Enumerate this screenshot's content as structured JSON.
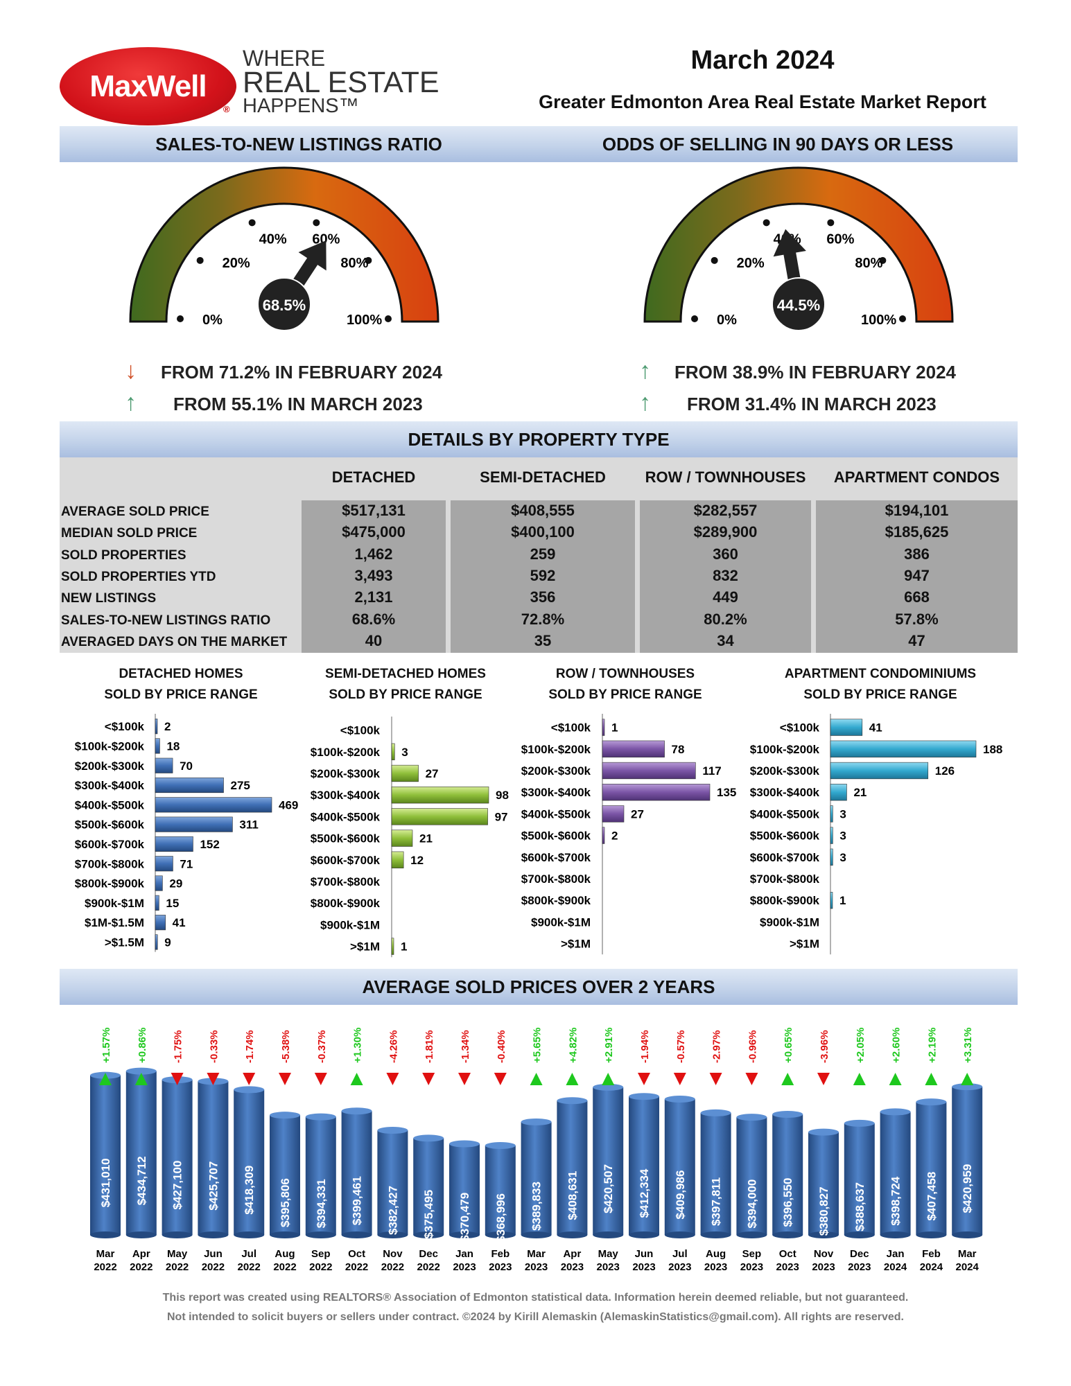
{
  "header": {
    "logo_text": "MaxWell",
    "tagline_1": "WHERE",
    "tagline_2": "REAL ESTATE",
    "tagline_3": "HAPPENS™",
    "report_month": "March 2024",
    "report_title": "Greater Edmonton Area Real Estate Market Report"
  },
  "gauge_sales_ratio": {
    "title": "SALES-TO-NEW LISTINGS RATIO",
    "value": 68.5,
    "value_label": "68.5%",
    "tick_labels": [
      "0%",
      "20%",
      "40%",
      "60%",
      "80%",
      "100%"
    ],
    "change_1": {
      "direction": "down",
      "text": "FROM 71.2% IN FEBRUARY 2024"
    },
    "change_2": {
      "direction": "up",
      "text": "FROM 55.1% IN MARCH 2023"
    }
  },
  "gauge_odds": {
    "title": "ODDS OF SELLING IN 90 DAYS OR LESS",
    "value": 44.5,
    "value_label": "44.5%",
    "tick_labels": [
      "0%",
      "20%",
      "40%",
      "60%",
      "80%",
      "100%"
    ],
    "change_1": {
      "direction": "up",
      "text": "FROM 38.9% IN FEBRUARY 2024"
    },
    "change_2": {
      "direction": "up",
      "text": "FROM 31.4% IN MARCH 2023"
    }
  },
  "details": {
    "title": "DETAILS BY PROPERTY TYPE",
    "columns": [
      "DETACHED",
      "SEMI-DETACHED",
      "ROW / TOWNHOUSES",
      "APARTMENT CONDOS"
    ],
    "rows": [
      {
        "label": "AVERAGE SOLD PRICE",
        "values": [
          "$517,131",
          "$408,555",
          "$282,557",
          "$194,101"
        ]
      },
      {
        "label": "MEDIAN SOLD PRICE",
        "values": [
          "$475,000",
          "$400,100",
          "$289,900",
          "$185,625"
        ]
      },
      {
        "label": "SOLD PROPERTIES",
        "values": [
          "1,462",
          "259",
          "360",
          "386"
        ]
      },
      {
        "label": "SOLD PROPERTIES YTD",
        "values": [
          "3,493",
          "592",
          "832",
          "947"
        ]
      },
      {
        "label": "NEW LISTINGS",
        "values": [
          "2,131",
          "356",
          "449",
          "668"
        ]
      },
      {
        "label": "SALES-TO-NEW LISTINGS RATIO",
        "values": [
          "68.6%",
          "72.8%",
          "80.2%",
          "57.8%"
        ]
      },
      {
        "label": "AVERAGED DAYS ON THE MARKET",
        "values": [
          "40",
          "35",
          "34",
          "47"
        ]
      }
    ]
  },
  "chart_data": [
    {
      "type": "bar",
      "orientation": "horizontal",
      "title_1": "DETACHED HOMES",
      "title_2": "SOLD BY PRICE RANGE",
      "color": "#3f6fb5",
      "categories": [
        "<$100k",
        "$100k-$200k",
        "$200k-$300k",
        "$300k-$400k",
        "$400k-$500k",
        "$500k-$600k",
        "$600k-$700k",
        "$700k-$800k",
        "$800k-$900k",
        "$900k-$1M",
        "$1M-$1.5M",
        ">$1.5M"
      ],
      "values": [
        2,
        18,
        70,
        275,
        469,
        311,
        152,
        71,
        29,
        15,
        41,
        9
      ],
      "value_labels": [
        "2",
        "18",
        "70",
        "275",
        "469",
        "311",
        "152",
        "71",
        "29",
        "15",
        "41",
        "9"
      ]
    },
    {
      "type": "bar",
      "orientation": "horizontal",
      "title_1": "SEMI-DETACHED HOMES",
      "title_2": "SOLD BY PRICE RANGE",
      "color": "#8fbf3a",
      "categories": [
        "<$100k",
        "$100k-$200k",
        "$200k-$300k",
        "$300k-$400k",
        "$400k-$500k",
        "$500k-$600k",
        "$600k-$700k",
        "$700k-$800k",
        "$800k-$900k",
        "$900k-$1M",
        ">$1M"
      ],
      "values": [
        0,
        3,
        27,
        98,
        97,
        21,
        12,
        0,
        0,
        0,
        1
      ],
      "value_labels": [
        "",
        "3",
        "27",
        "98",
        "97",
        "21",
        "12",
        "",
        "",
        "",
        "1"
      ]
    },
    {
      "type": "bar",
      "orientation": "horizontal",
      "title_1": "ROW / TOWNHOUSES",
      "title_2": "SOLD BY PRICE RANGE",
      "color": "#7b55a6",
      "categories": [
        "<$100k",
        "$100k-$200k",
        "$200k-$300k",
        "$300k-$400k",
        "$400k-$500k",
        "$500k-$600k",
        "$600k-$700k",
        "$700k-$800k",
        "$800k-$900k",
        "$900k-$1M",
        ">$1M"
      ],
      "values": [
        1,
        78,
        117,
        135,
        27,
        2,
        0,
        0,
        0,
        0,
        0
      ],
      "value_labels": [
        "1",
        "78",
        "117",
        "135",
        "27",
        "2",
        "",
        "",
        "",
        "",
        ""
      ]
    },
    {
      "type": "bar",
      "orientation": "horizontal",
      "title_1": "APARTMENT CONDOMINIUMS",
      "title_2": "SOLD BY PRICE RANGE",
      "color": "#33a9cf",
      "categories": [
        "<$100k",
        "$100k-$200k",
        "$200k-$300k",
        "$300k-$400k",
        "$400k-$500k",
        "$500k-$600k",
        "$600k-$700k",
        "$700k-$800k",
        "$800k-$900k",
        "$900k-$1M",
        ">$1M"
      ],
      "values": [
        41,
        188,
        126,
        21,
        3,
        3,
        3,
        0,
        1,
        0,
        0
      ],
      "value_labels": [
        "41",
        "188",
        "126",
        "21",
        "3",
        "3",
        "3",
        "",
        "1",
        "",
        ""
      ]
    },
    {
      "type": "bar",
      "orientation": "vertical",
      "title": "AVERAGE SOLD PRICES OVER 2 YEARS",
      "color": "#3f6fb5",
      "categories": [
        [
          "Mar",
          "2022"
        ],
        [
          "Apr",
          "2022"
        ],
        [
          "May",
          "2022"
        ],
        [
          "Jun",
          "2022"
        ],
        [
          "Jul",
          "2022"
        ],
        [
          "Aug",
          "2022"
        ],
        [
          "Sep",
          "2022"
        ],
        [
          "Oct",
          "2022"
        ],
        [
          "Nov",
          "2022"
        ],
        [
          "Dec",
          "2022"
        ],
        [
          "Jan",
          "2023"
        ],
        [
          "Feb",
          "2023"
        ],
        [
          "Mar",
          "2023"
        ],
        [
          "Apr",
          "2023"
        ],
        [
          "May",
          "2023"
        ],
        [
          "Jun",
          "2023"
        ],
        [
          "Jul",
          "2023"
        ],
        [
          "Aug",
          "2023"
        ],
        [
          "Sep",
          "2023"
        ],
        [
          "Oct",
          "2023"
        ],
        [
          "Nov",
          "2023"
        ],
        [
          "Dec",
          "2023"
        ],
        [
          "Jan",
          "2024"
        ],
        [
          "Feb",
          "2024"
        ],
        [
          "Mar",
          "2024"
        ]
      ],
      "values": [
        431010,
        434712,
        427100,
        425707,
        418309,
        395806,
        394331,
        399461,
        382427,
        375495,
        370479,
        368996,
        389833,
        408631,
        420507,
        412334,
        409986,
        397811,
        394000,
        396550,
        380827,
        388637,
        398724,
        407458,
        420959
      ],
      "value_labels": [
        "$431,010",
        "$434,712",
        "$427,100",
        "$425,707",
        "$418,309",
        "$395,806",
        "$394,331",
        "$399,461",
        "$382,427",
        "$375,495",
        "$370,479",
        "$368,996",
        "$389,833",
        "$408,631",
        "$420,507",
        "$412,334",
        "$409,986",
        "$397,811",
        "$394,000",
        "$396,550",
        "$380,827",
        "$388,637",
        "$398,724",
        "$407,458",
        "$420,959"
      ],
      "changes": [
        "+1.57%",
        "+0.86%",
        "-1.75%",
        "-0.33%",
        "-1.74%",
        "-5.38%",
        "-0.37%",
        "+1.30%",
        "-4.26%",
        "-1.81%",
        "-1.34%",
        "-0.40%",
        "+5.65%",
        "+4.82%",
        "+2.91%",
        "-1.94%",
        "-0.57%",
        "-2.97%",
        "-0.96%",
        "+0.65%",
        "-3.96%",
        "+2.05%",
        "+2.60%",
        "+2.19%",
        "+3.31%"
      ],
      "up_color": "#1ec81e",
      "down_color": "#e01010"
    }
  ],
  "footer": {
    "line_1": "This report was created using REALTORS® Association of Edmonton statistical data. Information herein deemed reliable, but not guaranteed.",
    "line_2": "Not intended to solicit buyers or sellers under contract. ©2024 by Kirill Alemaskin (AlemaskinStatistics@gmail.com). All rights are reserved."
  }
}
